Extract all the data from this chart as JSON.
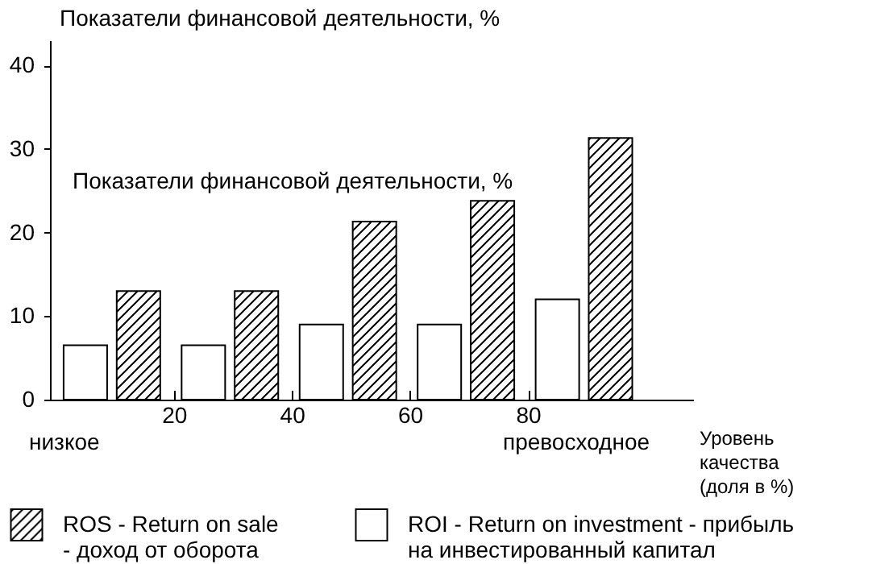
{
  "chart_data": {
    "type": "bar",
    "ylabel": "Показатели финансовой деятельности, %",
    "xlabel": "Уровень качества (доля в %)",
    "annotations": [
      "Показатели финансовой деятельности, %",
      "низкое",
      "превосходное"
    ],
    "xlim": [
      -1,
      108
    ],
    "xticks": [
      20,
      40,
      60,
      80
    ],
    "ylim": [
      0,
      43
    ],
    "yticks": [
      0,
      10,
      20,
      30,
      40
    ],
    "grid": false,
    "legend": "bottom",
    "series": [
      {
        "name": "ROS - Return on sale - доход от оборота",
        "color": "#000000",
        "x": [
          14,
          34,
          54,
          74,
          94
        ],
        "values": [
          13,
          13,
          21.3,
          23.8,
          31.3
        ]
      },
      {
        "name": "ROI - Return on investment - прибыль на инвестированный капитал",
        "color": "#ffffff",
        "x": [
          5,
          25,
          45,
          65,
          85
        ],
        "values": [
          6.5,
          6.5,
          9,
          9,
          12
        ]
      }
    ]
  }
}
